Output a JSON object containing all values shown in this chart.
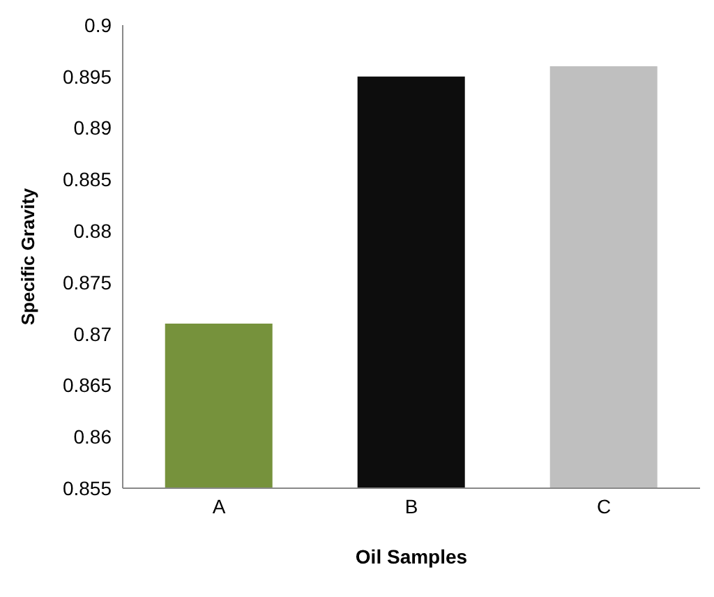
{
  "chart_data": {
    "type": "bar",
    "xlabel": "Oil Samples",
    "ylabel": "Specific Gravity",
    "categories": [
      "A",
      "B",
      "C"
    ],
    "values": [
      0.871,
      0.895,
      0.896
    ],
    "colors": [
      "#76923c",
      "#0d0d0d",
      "#bfbfbf"
    ],
    "ylim": [
      0.855,
      0.9
    ],
    "yticks": [
      0.855,
      0.86,
      0.865,
      0.87,
      0.875,
      0.88,
      0.885,
      0.89,
      0.895,
      0.9
    ],
    "grid": false,
    "legend": false
  }
}
